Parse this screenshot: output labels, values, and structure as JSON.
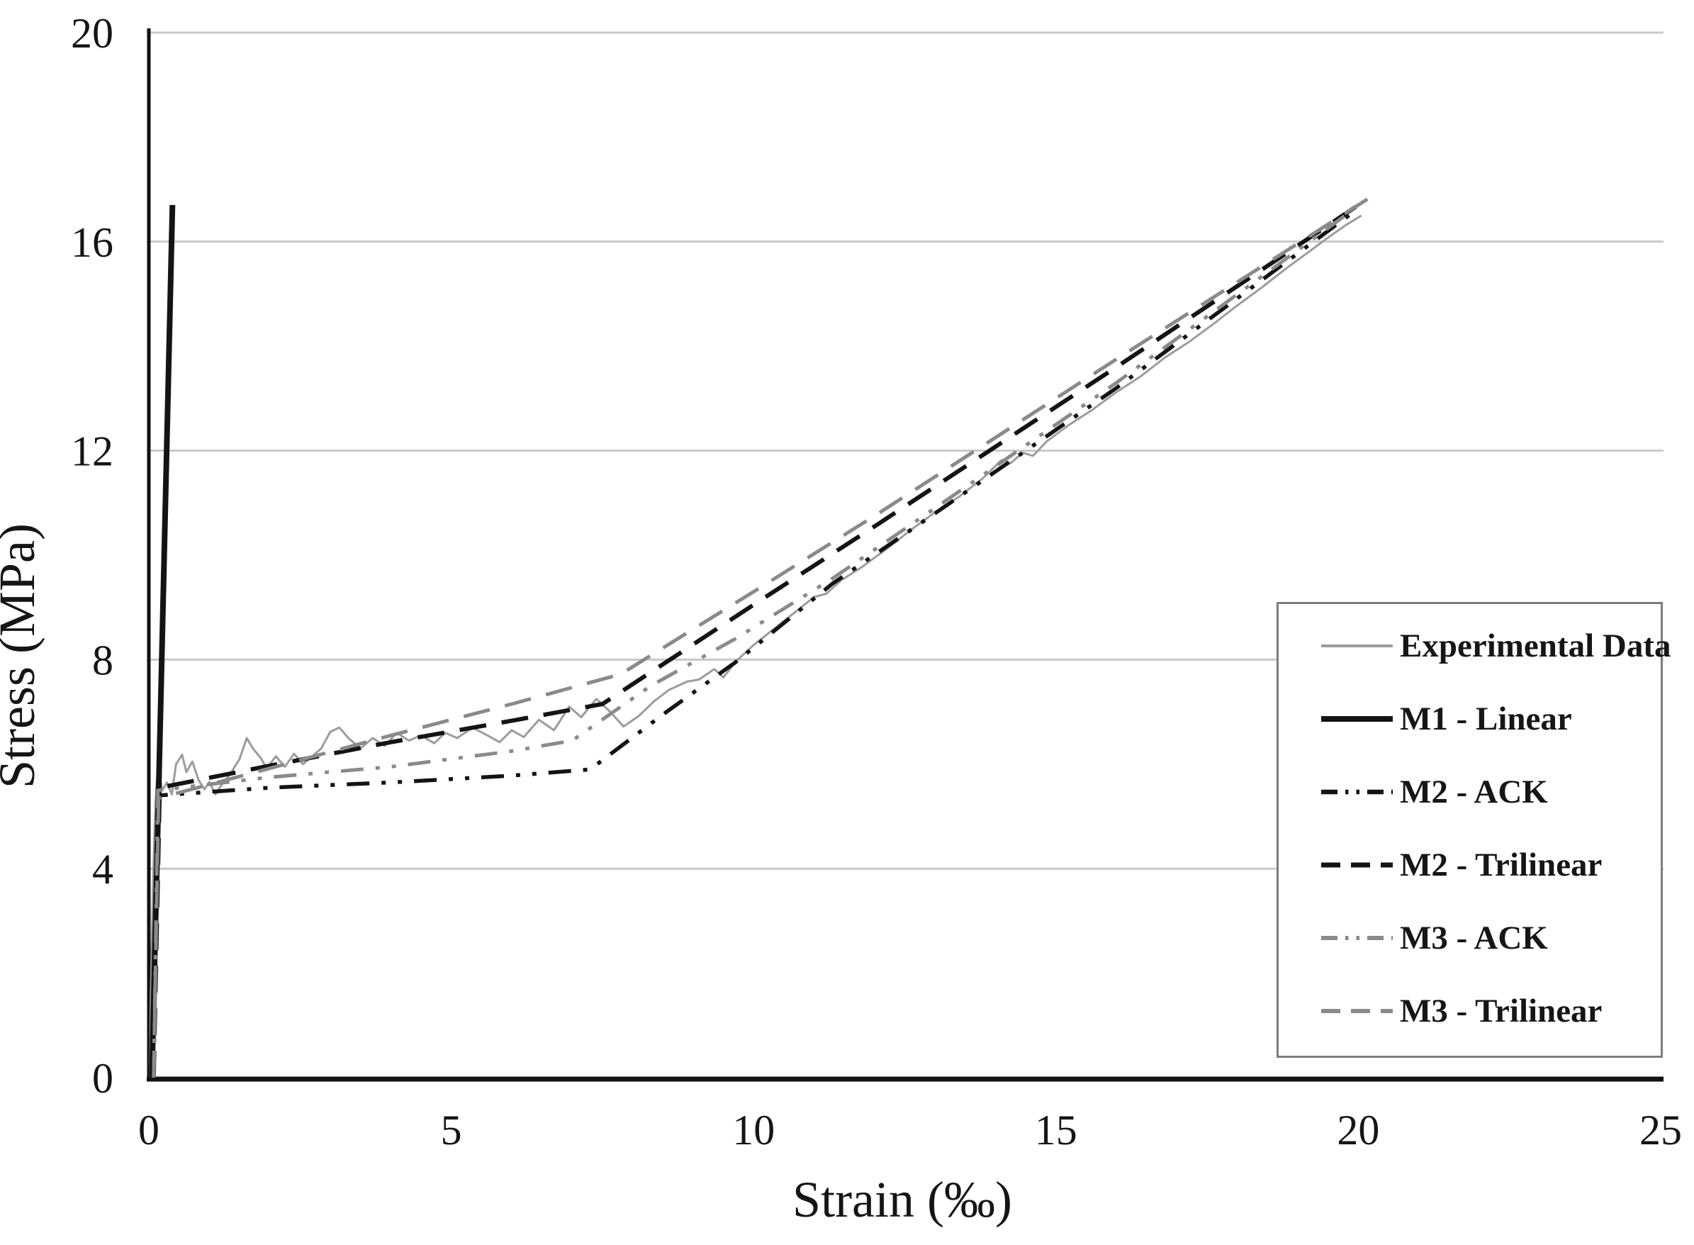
{
  "figure": {
    "background": "#ffffff",
    "text_color": "#151515",
    "gridline_color": "#c9c9c9",
    "axis_color": "#111111",
    "legend_border_color": "#7c7c7c"
  },
  "chart_data": {
    "type": "line",
    "title": "",
    "xlabel": "Strain (‰)",
    "ylabel": "Stress (MPa)",
    "xlim": [
      0,
      25
    ],
    "ylim": [
      0,
      20
    ],
    "xticks": [
      0,
      5,
      10,
      15,
      20,
      25
    ],
    "yticks": [
      0,
      4,
      8,
      12,
      16,
      20
    ],
    "grid": "horizontal gridlines at every 4 MPa",
    "legend_position": "right-middle box",
    "series": [
      {
        "name": "Experimental Data",
        "style": "solid",
        "color": "#9c9c9c",
        "width": 3,
        "points": [
          [
            0.02,
            0
          ],
          [
            0.03,
            1.4
          ],
          [
            0.05,
            2.6
          ],
          [
            0.07,
            3.7
          ],
          [
            0.09,
            4.6
          ],
          [
            0.11,
            5.25
          ],
          [
            0.13,
            5.65
          ],
          [
            0.17,
            5.85
          ],
          [
            0.22,
            5.5
          ],
          [
            0.3,
            5.65
          ],
          [
            0.38,
            5.42
          ],
          [
            0.45,
            6.0
          ],
          [
            0.55,
            6.18
          ],
          [
            0.62,
            5.85
          ],
          [
            0.72,
            6.05
          ],
          [
            0.82,
            5.7
          ],
          [
            0.92,
            5.52
          ],
          [
            1.0,
            5.66
          ],
          [
            1.1,
            5.42
          ],
          [
            1.2,
            5.6
          ],
          [
            1.35,
            5.82
          ],
          [
            1.5,
            6.1
          ],
          [
            1.62,
            6.5
          ],
          [
            1.72,
            6.3
          ],
          [
            1.85,
            6.12
          ],
          [
            1.95,
            5.92
          ],
          [
            2.1,
            6.15
          ],
          [
            2.25,
            5.95
          ],
          [
            2.4,
            6.2
          ],
          [
            2.55,
            6.0
          ],
          [
            2.7,
            6.15
          ],
          [
            2.85,
            6.3
          ],
          [
            3.0,
            6.62
          ],
          [
            3.15,
            6.7
          ],
          [
            3.3,
            6.5
          ],
          [
            3.5,
            6.3
          ],
          [
            3.7,
            6.5
          ],
          [
            3.9,
            6.35
          ],
          [
            4.1,
            6.6
          ],
          [
            4.3,
            6.45
          ],
          [
            4.5,
            6.55
          ],
          [
            4.72,
            6.4
          ],
          [
            4.9,
            6.6
          ],
          [
            5.1,
            6.5
          ],
          [
            5.35,
            6.7
          ],
          [
            5.6,
            6.55
          ],
          [
            5.8,
            6.42
          ],
          [
            6.0,
            6.65
          ],
          [
            6.2,
            6.52
          ],
          [
            6.45,
            6.85
          ],
          [
            6.7,
            6.65
          ],
          [
            6.95,
            7.1
          ],
          [
            7.15,
            6.9
          ],
          [
            7.4,
            7.25
          ],
          [
            7.63,
            7.0
          ],
          [
            7.85,
            6.72
          ],
          [
            8.1,
            6.92
          ],
          [
            8.35,
            7.2
          ],
          [
            8.6,
            7.42
          ],
          [
            8.9,
            7.58
          ],
          [
            9.1,
            7.62
          ],
          [
            9.35,
            7.82
          ],
          [
            9.5,
            7.66
          ],
          [
            9.72,
            7.98
          ],
          [
            10.0,
            8.28
          ],
          [
            10.35,
            8.6
          ],
          [
            10.7,
            8.92
          ],
          [
            11.0,
            9.2
          ],
          [
            11.2,
            9.26
          ],
          [
            11.45,
            9.52
          ],
          [
            11.8,
            9.78
          ],
          [
            12.2,
            10.12
          ],
          [
            12.6,
            10.48
          ],
          [
            13.0,
            10.82
          ],
          [
            13.4,
            11.12
          ],
          [
            13.8,
            11.48
          ],
          [
            14.1,
            11.82
          ],
          [
            14.25,
            11.76
          ],
          [
            14.45,
            11.96
          ],
          [
            14.62,
            11.9
          ],
          [
            14.85,
            12.18
          ],
          [
            15.2,
            12.48
          ],
          [
            15.6,
            12.78
          ],
          [
            16.0,
            13.12
          ],
          [
            16.4,
            13.42
          ],
          [
            16.8,
            13.78
          ],
          [
            17.2,
            14.08
          ],
          [
            17.6,
            14.42
          ],
          [
            18.0,
            14.78
          ],
          [
            18.4,
            15.12
          ],
          [
            18.8,
            15.48
          ],
          [
            19.2,
            15.82
          ],
          [
            19.55,
            16.12
          ],
          [
            19.8,
            16.32
          ],
          [
            20.05,
            16.5
          ]
        ]
      },
      {
        "name": "M1 - Linear",
        "style": "solid",
        "color": "#141414",
        "width": 8,
        "points": [
          [
            0.05,
            0
          ],
          [
            0.39,
            16.7
          ]
        ]
      },
      {
        "name": "M2 - ACK",
        "style": "dashdotdot",
        "color": "#141414",
        "width": 5.5,
        "points": [
          [
            0.08,
            0
          ],
          [
            0.15,
            5.4
          ],
          [
            2,
            5.55
          ],
          [
            4,
            5.65
          ],
          [
            6,
            5.78
          ],
          [
            7.3,
            5.9
          ],
          [
            8.5,
            6.95
          ],
          [
            9.7,
            7.95
          ],
          [
            11.3,
            9.45
          ],
          [
            13,
            10.8
          ],
          [
            16,
            13.2
          ],
          [
            19.9,
            16.55
          ]
        ]
      },
      {
        "name": "M2 - Trilinear",
        "style": "dashed",
        "color": "#141414",
        "width": 6,
        "points": [
          [
            0.08,
            0
          ],
          [
            0.18,
            5.55
          ],
          [
            2,
            5.97
          ],
          [
            4,
            6.42
          ],
          [
            6,
            6.83
          ],
          [
            7.5,
            7.15
          ],
          [
            10,
            9.05
          ],
          [
            12,
            10.55
          ],
          [
            16,
            13.6
          ],
          [
            20,
            16.7
          ]
        ]
      },
      {
        "name": "M3 - ACK",
        "style": "dashdotdot",
        "color": "#8a8a8a",
        "width": 5,
        "points": [
          [
            0.08,
            0
          ],
          [
            0.15,
            5.5
          ],
          [
            2,
            5.75
          ],
          [
            4,
            5.95
          ],
          [
            6,
            6.25
          ],
          [
            7.0,
            6.45
          ],
          [
            8.3,
            7.5
          ],
          [
            9.7,
            8.4
          ],
          [
            11.3,
            9.55
          ],
          [
            13,
            10.9
          ],
          [
            16,
            13.3
          ],
          [
            19.9,
            16.6
          ]
        ]
      },
      {
        "name": "M3 - Trilinear",
        "style": "dashed",
        "color": "#8a8a8a",
        "width": 5,
        "points": [
          [
            0.08,
            0
          ],
          [
            0.16,
            5.35
          ],
          [
            2,
            5.92
          ],
          [
            4,
            6.55
          ],
          [
            6,
            7.15
          ],
          [
            7.8,
            7.72
          ],
          [
            10,
            9.3
          ],
          [
            12,
            10.75
          ],
          [
            16,
            13.75
          ],
          [
            20.2,
            16.85
          ]
        ]
      }
    ]
  }
}
